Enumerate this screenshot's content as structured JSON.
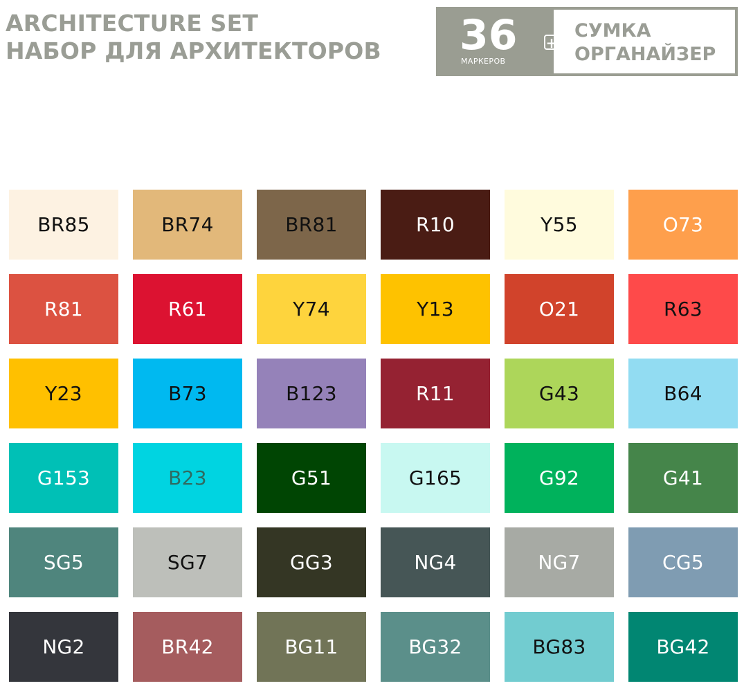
{
  "header": {
    "title_en": "ARCHITECTURE SET",
    "title_ru": "НАБОР ДЛЯ АРХИТЕКТОРОВ"
  },
  "badge": {
    "count": "36",
    "count_label": "маркеров",
    "plus": "+",
    "extra_line1": "СУМКА",
    "extra_line2": "ОРГАНАЙЗЕР"
  },
  "swatches": [
    {
      "code": "BR85",
      "bg": "#fdf2e2",
      "fg": "#111111"
    },
    {
      "code": "BR74",
      "bg": "#e2b87a",
      "fg": "#111111"
    },
    {
      "code": "BR81",
      "bg": "#7d664a",
      "fg": "#111111"
    },
    {
      "code": "R10",
      "bg": "#4a1c14",
      "fg": "#ffffff"
    },
    {
      "code": "Y55",
      "bg": "#fffbdd",
      "fg": "#111111"
    },
    {
      "code": "O73",
      "bg": "#fe9f4c",
      "fg": "#ffffff"
    },
    {
      "code": "R81",
      "bg": "#dc5241",
      "fg": "#ffffff"
    },
    {
      "code": "R61",
      "bg": "#dc1231",
      "fg": "#ffffff"
    },
    {
      "code": "Y74",
      "bg": "#fed43d",
      "fg": "#111111"
    },
    {
      "code": "Y13",
      "bg": "#fec200",
      "fg": "#111111"
    },
    {
      "code": "O21",
      "bg": "#d1432b",
      "fg": "#ffffff"
    },
    {
      "code": "R63",
      "bg": "#fe4a4a",
      "fg": "#111111"
    },
    {
      "code": "Y23",
      "bg": "#ffc000",
      "fg": "#111111"
    },
    {
      "code": "B73",
      "bg": "#00b9f0",
      "fg": "#111111"
    },
    {
      "code": "B123",
      "bg": "#9582b9",
      "fg": "#111111"
    },
    {
      "code": "R11",
      "bg": "#952232",
      "fg": "#ffffff"
    },
    {
      "code": "G43",
      "bg": "#add65a",
      "fg": "#111111"
    },
    {
      "code": "B64",
      "bg": "#92dcf2",
      "fg": "#111111"
    },
    {
      "code": "G153",
      "bg": "#00c0b6",
      "fg": "#ffffff"
    },
    {
      "code": "B23",
      "bg": "#00d4e1",
      "fg": "#2f6b61"
    },
    {
      "code": "G51",
      "bg": "#004503",
      "fg": "#ffffff"
    },
    {
      "code": "G165",
      "bg": "#c8f8f1",
      "fg": "#111111"
    },
    {
      "code": "G92",
      "bg": "#00b25c",
      "fg": "#ffffff"
    },
    {
      "code": "G41",
      "bg": "#45854a",
      "fg": "#ffffff"
    },
    {
      "code": "SG5",
      "bg": "#4f857d",
      "fg": "#ffffff"
    },
    {
      "code": "SG7",
      "bg": "#bdbfba",
      "fg": "#111111"
    },
    {
      "code": "GG3",
      "bg": "#343624",
      "fg": "#ffffff"
    },
    {
      "code": "NG4",
      "bg": "#465656",
      "fg": "#ffffff"
    },
    {
      "code": "NG7",
      "bg": "#a7aaa4",
      "fg": "#ffffff"
    },
    {
      "code": "CG5",
      "bg": "#7f9cb2",
      "fg": "#ffffff"
    },
    {
      "code": "NG2",
      "bg": "#34363c",
      "fg": "#ffffff"
    },
    {
      "code": "BR42",
      "bg": "#a55c5e",
      "fg": "#ffffff"
    },
    {
      "code": "BG11",
      "bg": "#717457",
      "fg": "#ffffff"
    },
    {
      "code": "BG32",
      "bg": "#5b8f8a",
      "fg": "#ffffff"
    },
    {
      "code": "BG83",
      "bg": "#72ccd0",
      "fg": "#111111"
    },
    {
      "code": "BG42",
      "bg": "#018672",
      "fg": "#ffffff"
    }
  ]
}
